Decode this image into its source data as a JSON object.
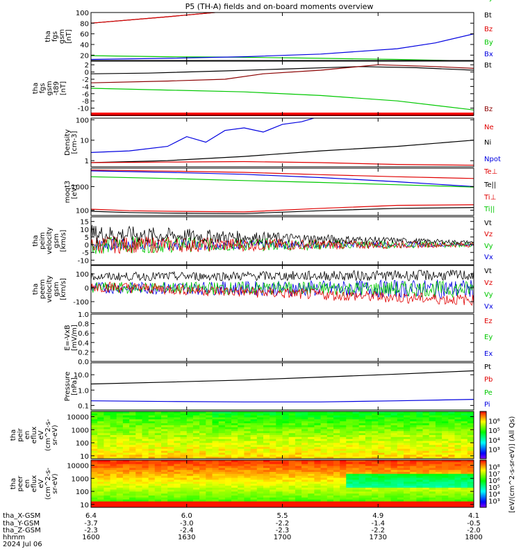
{
  "title": "P5 (TH-A) fields and on-board moments overview",
  "colors": {
    "black": "#000000",
    "red": "#e00000",
    "green": "#00c800",
    "blue": "#0000e0",
    "darkred": "#8b0000"
  },
  "chart_data": [
    {
      "type": "line",
      "ylabel": [
        "tha",
        "fgs",
        "gsm",
        "[nT]"
      ],
      "ylim": [
        10,
        100
      ],
      "yticks": [
        20,
        40,
        60,
        80,
        100
      ],
      "legend": [
        {
          "name": "Bt",
          "color": "#000000"
        },
        {
          "name": "Bz",
          "color": "#e00000"
        },
        {
          "name": "By",
          "color": "#00c800"
        },
        {
          "name": "Bx",
          "color": "#0000e0"
        }
      ],
      "series": [
        {
          "name": "Bt",
          "color": "#000000",
          "x": [
            0,
            0.2,
            0.4,
            0.6
          ],
          "y": [
            80,
            92,
            105,
            118
          ]
        },
        {
          "name": "Bz",
          "color": "#e00000",
          "x": [
            0,
            0.2,
            0.4,
            0.6
          ],
          "y": [
            80,
            92,
            105,
            118
          ]
        },
        {
          "name": "By",
          "color": "#00c800",
          "x": [
            0,
            0.2,
            0.4,
            0.6,
            0.8,
            1.0
          ],
          "y": [
            19,
            17,
            16,
            14,
            12,
            9
          ]
        },
        {
          "name": "Bx",
          "color": "#0000e0",
          "x": [
            0,
            0.2,
            0.4,
            0.6,
            0.8,
            0.9,
            1.0
          ],
          "y": [
            12,
            14,
            17,
            22,
            32,
            43,
            60
          ]
        }
      ]
    },
    {
      "type": "line",
      "ylabel": [
        "tha",
        "fgs",
        "gsm",
        "-t89",
        "[nT]"
      ],
      "ylim": [
        -12,
        3
      ],
      "yticks": [
        2,
        0,
        -2,
        -4,
        -6,
        -8,
        -10
      ],
      "legend": [
        {
          "name": "Bt",
          "color": "#000000"
        },
        {
          "name": "Bz",
          "color": "#8b0000"
        },
        {
          "name": "By",
          "color": "#00c800"
        }
      ],
      "series": [
        {
          "name": "Bt",
          "color": "#000000",
          "x": [
            0,
            0.15,
            0.35,
            0.5,
            0.7,
            0.85,
            1.0
          ],
          "y": [
            -0.5,
            -0.3,
            0.3,
            0.8,
            1.5,
            1.2,
            0.5
          ]
        },
        {
          "name": "Bz",
          "color": "#8b0000",
          "x": [
            0,
            0.2,
            0.35,
            0.45,
            0.6,
            0.75,
            0.9,
            1.0
          ],
          "y": [
            -3,
            -2.5,
            -2,
            -0.5,
            0.5,
            2,
            1.5,
            1.0
          ]
        },
        {
          "name": "By",
          "color": "#00c800",
          "x": [
            0,
            0.2,
            0.4,
            0.6,
            0.8,
            1.0
          ],
          "y": [
            -4.5,
            -5,
            -5.5,
            -6.5,
            -8,
            -10.5
          ]
        }
      ]
    },
    {
      "type": "line",
      "ylabel": [
        "Density",
        "[cm-3]"
      ],
      "ylim": [
        0.5,
        120
      ],
      "yticks": [
        1,
        10,
        100
      ],
      "ytick_labels": [
        "1",
        "10",
        "100"
      ],
      "log": true,
      "legend": [
        {
          "name": "Ne",
          "color": "#e00000"
        },
        {
          "name": "Ni",
          "color": "#000000"
        },
        {
          "name": "Npot",
          "color": "#0000e0"
        }
      ],
      "series": [
        {
          "name": "Npot",
          "color": "#0000e0",
          "x": [
            0,
            0.1,
            0.2,
            0.25,
            0.3,
            0.35,
            0.4,
            0.45,
            0.5,
            0.55,
            0.6,
            0.65
          ],
          "y": [
            2.5,
            3,
            5,
            15,
            8,
            30,
            40,
            25,
            60,
            80,
            150,
            130
          ]
        },
        {
          "name": "Ni",
          "color": "#000000",
          "x": [
            0,
            0.2,
            0.4,
            0.6,
            0.8,
            1.0
          ],
          "y": [
            0.8,
            1.0,
            1.6,
            3,
            5,
            10
          ]
        },
        {
          "name": "Ne",
          "color": "#e00000",
          "x": [
            0,
            0.2,
            0.4,
            0.6,
            0.8,
            1.0
          ],
          "y": [
            0.8,
            0.85,
            0.9,
            0.8,
            0.65,
            0.6
          ]
        }
      ]
    },
    {
      "type": "line",
      "ylabel": [
        "moqt3",
        "[eV]"
      ],
      "ylim": [
        60,
        6000
      ],
      "yticks": [
        100,
        1000
      ],
      "ytick_labels": [
        "100",
        "1000"
      ],
      "log": true,
      "legend": [
        {
          "name": "Te⊥",
          "color": "#e00000"
        },
        {
          "name": "Te||",
          "color": "#000000"
        },
        {
          "name": "Ti⊥",
          "color": "#e00000"
        },
        {
          "name": "Ti||",
          "color": "#00c800"
        }
      ],
      "series": [
        {
          "name": "Te⊥",
          "color": "#e00000",
          "x": [
            0,
            0.2,
            0.4,
            0.6,
            0.8,
            1.0
          ],
          "y": [
            5000,
            4500,
            4000,
            3200,
            2600,
            2200
          ]
        },
        {
          "name": "Te||",
          "color": "#0000e0",
          "x": [
            0,
            0.2,
            0.4,
            0.6,
            0.8,
            1.0
          ],
          "y": [
            4600,
            4000,
            3300,
            2400,
            1600,
            1000
          ]
        },
        {
          "name": "Ti||",
          "color": "#00c800",
          "x": [
            0,
            0.2,
            0.4,
            0.6,
            0.8,
            1.0
          ],
          "y": [
            2600,
            2200,
            1800,
            1500,
            1200,
            950
          ]
        },
        {
          "name": "Ti⊥",
          "color": "#e00000",
          "x": [
            0,
            0.1,
            0.2,
            0.4,
            0.6,
            0.8,
            1.0
          ],
          "y": [
            110,
            95,
            90,
            85,
            120,
            160,
            170
          ]
        },
        {
          "name": "Te||",
          "color": "#000000",
          "x": [
            0,
            0.1,
            0.2,
            0.4,
            0.6,
            0.8,
            1.0
          ],
          "y": [
            90,
            80,
            75,
            72,
            95,
            120,
            130
          ]
        }
      ]
    },
    {
      "type": "line",
      "ylabel": [
        "tha",
        "peim",
        "velocity",
        "gsm",
        "[km/s]"
      ],
      "ylim": [
        -13,
        18
      ],
      "yticks": [
        15,
        10,
        5,
        0,
        -5,
        -10
      ],
      "legend": [
        {
          "name": "Vt",
          "color": "#000000"
        },
        {
          "name": "Vz",
          "color": "#e00000"
        },
        {
          "name": "Vy",
          "color": "#00c800"
        },
        {
          "name": "Vx",
          "color": "#0000e0"
        }
      ],
      "noise": [
        {
          "name": "Vx",
          "color": "#0000e0",
          "mean": 0,
          "amp": [
            4,
            1
          ]
        },
        {
          "name": "Vy",
          "color": "#00c800",
          "mean": 0,
          "amp": [
            6,
            1.5
          ]
        },
        {
          "name": "Vz",
          "color": "#e00000",
          "mean": 0,
          "amp": [
            6,
            1.5
          ]
        },
        {
          "name": "Vt",
          "color": "#000000",
          "mean": [
            7,
            1.5
          ],
          "amp": [
            6,
            1
          ]
        }
      ]
    },
    {
      "type": "line",
      "ylabel": [
        "tha",
        "peem",
        "velocity",
        "gsm",
        "[km/s]"
      ],
      "ylim": [
        -180,
        160
      ],
      "yticks": [
        100,
        0,
        -100
      ],
      "legend": [
        {
          "name": "Vt",
          "color": "#000000"
        },
        {
          "name": "Vz",
          "color": "#e00000"
        },
        {
          "name": "Vy",
          "color": "#00c800"
        },
        {
          "name": "Vx",
          "color": "#0000e0"
        }
      ],
      "noise": [
        {
          "name": "Vx",
          "color": "#0000e0",
          "mean": [
            0,
            -10
          ],
          "amp": [
            40,
            70
          ]
        },
        {
          "name": "Vy",
          "color": "#00c800",
          "mean": [
            0,
            -10
          ],
          "amp": [
            40,
            60
          ]
        },
        {
          "name": "Vz",
          "color": "#e00000",
          "mean": [
            10,
            -90
          ],
          "amp": [
            40,
            40
          ]
        },
        {
          "name": "Vt",
          "color": "#000000",
          "mean": [
            80,
            90
          ],
          "amp": [
            30,
            40
          ]
        }
      ]
    },
    {
      "type": "line",
      "ylabel": [
        "E=-VxB",
        "[mV/m]"
      ],
      "ylim": [
        0,
        1
      ],
      "yticks": [
        1.0,
        0.8,
        0.6,
        0.4,
        0.2,
        0.0
      ],
      "ytick_labels": [
        "1.0",
        "0.8",
        "0.6",
        "0.4",
        "0.2",
        "0.0"
      ],
      "legend": [
        {
          "name": "Ez",
          "color": "#e00000"
        },
        {
          "name": "Ey",
          "color": "#00c800"
        },
        {
          "name": "Ex",
          "color": "#0000e0"
        }
      ],
      "series": []
    },
    {
      "type": "line",
      "ylabel": [
        "Pressure",
        "[nPa]"
      ],
      "ylim": [
        0.05,
        60
      ],
      "yticks": [
        0.1,
        1.0,
        10.0
      ],
      "ytick_labels": [
        "0.1",
        "1.0",
        "10.0"
      ],
      "log": true,
      "legend": [
        {
          "name": "Pt",
          "color": "#000000"
        },
        {
          "name": "Pb",
          "color": "#e00000"
        },
        {
          "name": "Pe",
          "color": "#00c800"
        },
        {
          "name": "Pi",
          "color": "#0000e0"
        }
      ],
      "series": [
        {
          "name": "Pt",
          "color": "#000000",
          "x": [
            0,
            0.2,
            0.4,
            0.6,
            0.8,
            1.0
          ],
          "y": [
            2.5,
            3.3,
            4.5,
            7,
            11,
            18
          ]
        },
        {
          "name": "Pi",
          "color": "#0000e0",
          "x": [
            0,
            0.2,
            0.4,
            0.6,
            0.8,
            1.0
          ],
          "y": [
            0.2,
            0.18,
            0.17,
            0.17,
            0.2,
            0.25
          ]
        },
        {
          "name": "Pe",
          "color": "#00c800",
          "x": [
            0,
            0.2,
            0.4,
            0.6,
            0.8,
            1.0
          ],
          "y": [
            0.035,
            0.032,
            0.03,
            0.028,
            0.026,
            0.025
          ]
        }
      ]
    },
    {
      "type": "heatmap",
      "ylabel": [
        "tha",
        "peir",
        "en",
        "eflux",
        "eV",
        "(cm^2-s-",
        "sr-eV)"
      ],
      "yticks": [
        10,
        100,
        1000,
        10000
      ],
      "ytick_labels": [
        "10",
        "100",
        "1000",
        "10000"
      ],
      "ylim": [
        6,
        25000
      ],
      "log": true,
      "colorbar": {
        "ticks": [
          "10³",
          "10⁴",
          "10⁵",
          "10⁶"
        ]
      }
    },
    {
      "type": "heatmap",
      "ylabel": [
        "tha",
        "peer",
        "en",
        "eflux",
        "eV",
        "(cm^2-s-",
        "sr-eV)"
      ],
      "yticks": [
        10,
        100,
        1000,
        10000
      ],
      "ytick_labels": [
        "10",
        "100",
        "1000",
        "10000"
      ],
      "ylim": [
        6,
        25000
      ],
      "log": true,
      "colorbar": {
        "ticks": [
          "10³",
          "10⁴",
          "10⁵",
          "10⁶",
          "10⁷",
          "10⁸"
        ]
      }
    }
  ],
  "colorbar_label": "[eV/(cm^2-s-sr-eV)] (All Qs)",
  "xaxis": {
    "row_labels": [
      "tha_X-GSM",
      "tha_Y-GSM",
      "tha_Z-GSM",
      "hhmm",
      "2024 Jul 06"
    ],
    "columns": [
      [
        "6.4",
        "-3.7",
        "-2.3",
        "1600"
      ],
      [
        "6.0",
        "-3.0",
        "-2.4",
        "1630"
      ],
      [
        "5.5",
        "-2.2",
        "-2.3",
        "1700"
      ],
      [
        "4.9",
        "-1.4",
        "-2.2",
        "1730"
      ],
      [
        "4.1",
        "-0.5",
        "-2.0",
        "1800"
      ]
    ]
  }
}
